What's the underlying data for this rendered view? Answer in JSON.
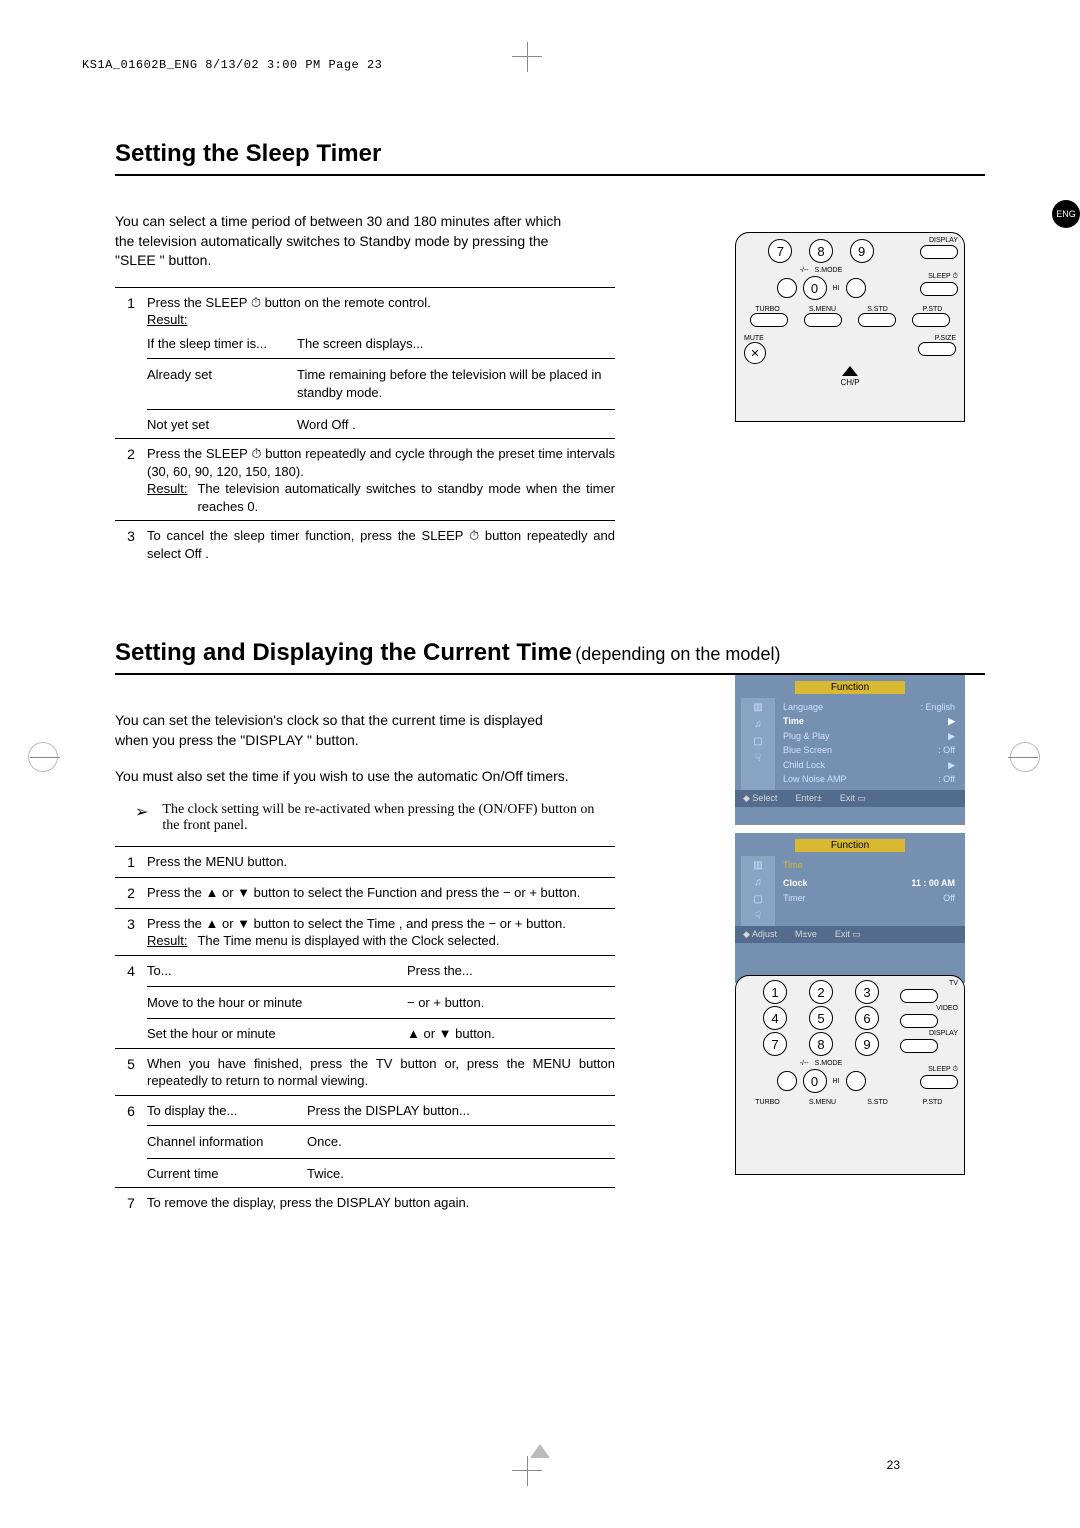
{
  "slug": "KS1A_01602B_ENG  8/13/02  3:00 PM  Page 23",
  "lang_badge": "ENG",
  "page_number": "23",
  "sleep": {
    "title": "Setting the Sleep Timer",
    "intro": "You can select a time period of between 30 and 180 minutes after which the television automatically switches to Standby mode by pressing the \"SLEE       \" button.",
    "steps": [
      {
        "num": "1",
        "lead": "Press the SLEEP ⏱ button on the remote control.",
        "result_label": "Result:",
        "table": {
          "head": [
            "If the sleep timer is...",
            "The screen displays..."
          ],
          "rows": [
            [
              "Already set",
              "Time remaining before the television will be placed in standby mode."
            ],
            [
              "Not yet set",
              "Word  Off ."
            ]
          ]
        }
      },
      {
        "num": "2",
        "lead": "Press the SLEEP ⏱ button repeatedly and cycle through the preset time intervals (30, 60, 90, 120, 150, 180).",
        "result_label": "Result:",
        "result_text": "The television automatically switches to standby mode when the timer reaches 0."
      },
      {
        "num": "3",
        "lead": "To cancel the sleep timer function, press the SLEEP ⏱ button repeatedly and select  Off ."
      }
    ]
  },
  "time": {
    "title": "Setting and Displaying the Current Time",
    "subtitle": "(depending on the model)",
    "intro1": "You can set the television's clock so that the current time is displayed when you press the \"DISPLAY    \" button.",
    "intro2": "You must also set the time if you wish to use the automatic On/Off timers.",
    "note": "The clock setting will be re-activated when pressing the  (ON/OFF) button on the front panel.",
    "steps": {
      "s1": "Press the MENU button.",
      "s2": "Press the ▲ or ▼ button to select the  Function  and press the − or + button.",
      "s3a": "Press the ▲ or ▼ button to select the  Time , and press the − or + button.",
      "s3result_label": "Result:",
      "s3result": "The  Time  menu is displayed with the  Clock  selected.",
      "s4head": [
        "To...",
        "Press the..."
      ],
      "s4rows": [
        [
          "Move to the hour or minute",
          "− or + button."
        ],
        [
          "Set the hour or minute",
          "▲ or ▼ button."
        ]
      ],
      "s5": "When you have finished, press the TV     button or, press the MENU button repeatedly to return to normal viewing.",
      "s6head": [
        "To display the...",
        "Press the DISPLAY     button..."
      ],
      "s6rows": [
        [
          "Channel information",
          "Once."
        ],
        [
          "Current time",
          "Twice."
        ]
      ],
      "s7": "To remove the display, press the DISPLAY     button again."
    }
  },
  "remote": {
    "numbers_top": [
      "7",
      "8",
      "9"
    ],
    "numbers_all": [
      "1",
      "2",
      "3",
      "4",
      "5",
      "6",
      "7",
      "8",
      "9"
    ],
    "zero": "0",
    "labels": {
      "display": "DISPLAY",
      "sleep": "SLEEP",
      "smode": "S.MODE",
      "hi": "HI",
      "turbo": "TURBO",
      "smenu": "S.MENU",
      "sstd": "S.STD",
      "pstd": "P.STD",
      "mute": "MUTE",
      "psize": "P.SIZE",
      "chp": "CH/P",
      "dash": "-/--",
      "tv": "TV",
      "video": "VIDEO"
    }
  },
  "osd": {
    "title": "Function",
    "menu1": [
      [
        "Language",
        ": English"
      ],
      [
        "Time",
        "▶"
      ],
      [
        "Plug & Play",
        "▶"
      ],
      [
        "Blue Screen",
        ": Off"
      ],
      [
        "Child Lock",
        "▶"
      ],
      [
        "Low Noise AMP",
        ": Off"
      ]
    ],
    "menu1_hi_index": 1,
    "foot1": [
      "◆ Select",
      "Enter±",
      "Exit  ▭"
    ],
    "time_panel": {
      "heading": "Time",
      "rows": [
        [
          "Clock",
          "11 : 00 AM"
        ],
        [
          "Timer",
          "Off"
        ]
      ],
      "hi_index": 0,
      "foot": [
        "◆ Adjust",
        "M±ve",
        "Exit ▭"
      ]
    }
  }
}
